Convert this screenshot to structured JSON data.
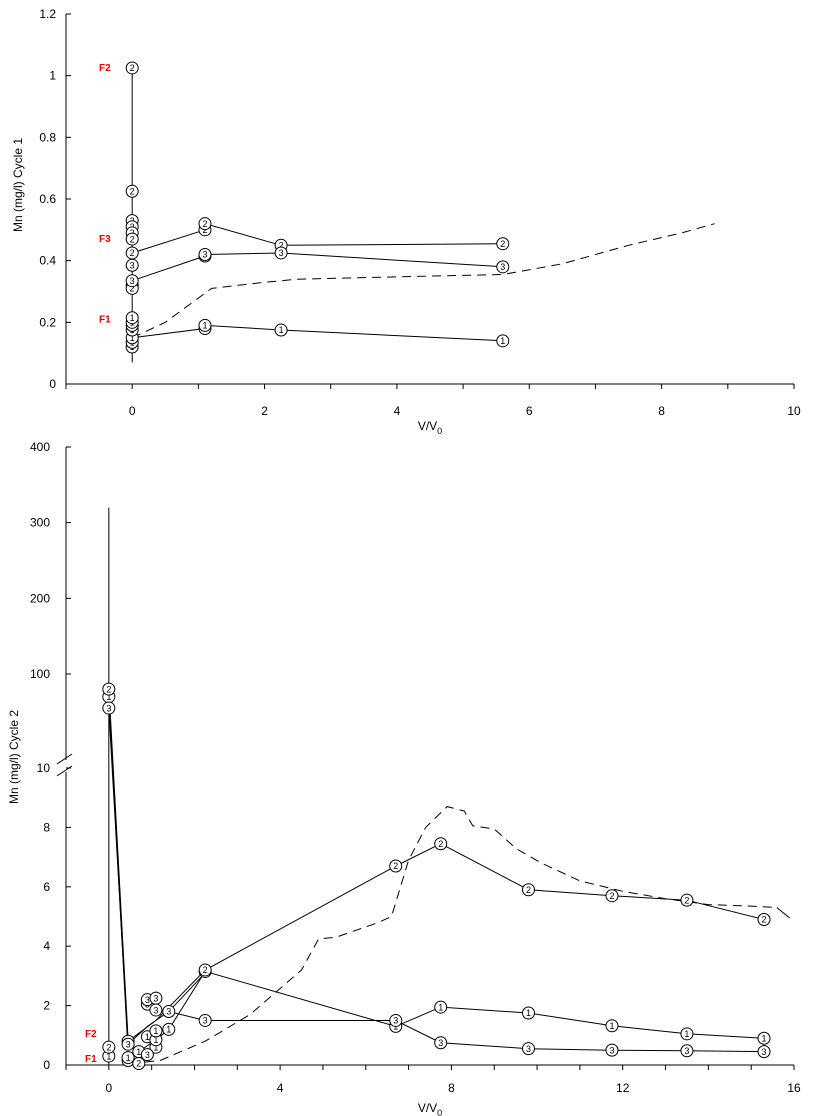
{
  "chart_data": [
    {
      "type": "line",
      "ylabel": "Mn (mg/l) Cycle 1",
      "xlabel": "V/V",
      "xlabel_subscript": "0",
      "xlim": [
        -1,
        10
      ],
      "ylim": [
        0,
        1.2
      ],
      "xticks": [
        "0",
        "2",
        "4",
        "6",
        "8",
        "10"
      ],
      "yticks": [
        "0",
        "0.2",
        "0.4",
        "0.6",
        "0.8",
        "1",
        "1.2"
      ],
      "grid": false,
      "fraction_labels": [
        {
          "text": "F2",
          "y": 1.025
        },
        {
          "text": "F3",
          "y": 0.47
        },
        {
          "text": "F1",
          "y": 0.21
        }
      ],
      "series": [
        {
          "marker": "1",
          "points": [
            [
              0,
              0.12
            ],
            [
              0,
              0.135
            ],
            [
              0,
              0.15
            ],
            [
              0,
              0.175
            ],
            [
              0,
              0.19
            ],
            [
              0,
              0.2
            ],
            [
              0,
              0.215
            ],
            [
              1.1,
              0.18
            ],
            [
              1.1,
              0.19
            ],
            [
              2.25,
              0.175
            ],
            [
              5.6,
              0.14
            ]
          ]
        },
        {
          "marker": "2",
          "points": [
            [
              0,
              1.025
            ],
            [
              0,
              0.625
            ],
            [
              0,
              0.53
            ],
            [
              0,
              0.51
            ],
            [
              0,
              0.49
            ],
            [
              0,
              0.47
            ],
            [
              0,
              0.425
            ],
            [
              0,
              0.32
            ],
            [
              0,
              0.31
            ],
            [
              1.1,
              0.5
            ],
            [
              1.1,
              0.52
            ],
            [
              2.25,
              0.45
            ],
            [
              5.6,
              0.455
            ]
          ]
        },
        {
          "marker": "3",
          "points": [
            [
              0,
              0.385
            ],
            [
              0,
              0.335
            ],
            [
              1.1,
              0.415
            ],
            [
              1.1,
              0.42
            ],
            [
              2.25,
              0.425
            ],
            [
              5.6,
              0.38
            ]
          ]
        }
      ],
      "dashed_line": [
        [
          0,
          0.15
        ],
        [
          0.5,
          0.2
        ],
        [
          1.2,
          0.31
        ],
        [
          2,
          0.33
        ],
        [
          2.5,
          0.34
        ],
        [
          3.5,
          0.345
        ],
        [
          4.5,
          0.35
        ],
        [
          5.6,
          0.355
        ],
        [
          6.5,
          0.39
        ],
        [
          7.5,
          0.45
        ],
        [
          8.3,
          0.49
        ],
        [
          8.8,
          0.52
        ]
      ]
    },
    {
      "type": "line",
      "ylabel": "Mn (mg/l) Cycle 2",
      "xlabel": "V/V",
      "xlabel_subscript": "0",
      "xlim": [
        -1,
        16
      ],
      "ylim": [
        0,
        400
      ],
      "axis_break": "10",
      "xticks": [
        "0",
        "4",
        "8",
        "12",
        "16"
      ],
      "yticks_lower": [
        "0",
        "2",
        "4",
        "6",
        "8",
        "10"
      ],
      "yticks_upper": [
        "100",
        "200",
        "300",
        "400"
      ],
      "grid": false,
      "fraction_labels": [
        {
          "text": "F2",
          "y": 1.05
        },
        {
          "text": "F1",
          "y": 0.2
        }
      ],
      "series": [
        {
          "marker": "1",
          "points": [
            [
              0,
              70
            ],
            [
              0,
              0.3
            ],
            [
              0.45,
              0.15
            ],
            [
              0.45,
              0.25
            ],
            [
              0.7,
              0.45
            ],
            [
              0.9,
              0.95
            ],
            [
              1.1,
              0.6
            ],
            [
              1.1,
              0.85
            ],
            [
              1.1,
              1.15
            ],
            [
              1.4,
              1.2
            ],
            [
              2.25,
              3.15
            ],
            [
              6.7,
              1.3
            ],
            [
              7.75,
              1.95
            ],
            [
              9.8,
              1.75
            ],
            [
              11.75,
              1.32
            ],
            [
              13.5,
              1.05
            ],
            [
              15.3,
              0.9
            ]
          ]
        },
        {
          "marker": "2",
          "points": [
            [
              0,
              80
            ],
            [
              0,
              0.6
            ],
            [
              0.45,
              0.8
            ],
            [
              0.7,
              0.05
            ],
            [
              2.25,
              3.2
            ],
            [
              6.7,
              6.7
            ],
            [
              7.75,
              7.45
            ],
            [
              9.8,
              5.9
            ],
            [
              11.75,
              5.7
            ],
            [
              13.5,
              5.55
            ],
            [
              15.3,
              4.9
            ]
          ]
        },
        {
          "marker": "3",
          "points": [
            [
              0,
              55
            ],
            [
              0.45,
              0.7
            ],
            [
              0.9,
              0.35
            ],
            [
              0.9,
              2.05
            ],
            [
              0.9,
              2.2
            ],
            [
              1.1,
              2.25
            ],
            [
              1.1,
              1.85
            ],
            [
              1.4,
              1.8
            ],
            [
              2.25,
              1.5
            ],
            [
              6.7,
              1.5
            ],
            [
              7.75,
              0.75
            ],
            [
              9.8,
              0.55
            ],
            [
              11.75,
              0.5
            ],
            [
              13.5,
              0.48
            ],
            [
              15.3,
              0.45
            ]
          ]
        }
      ],
      "dashed_line": [
        [
          0.5,
          0.05
        ],
        [
          1.2,
          0.15
        ],
        [
          2.25,
          0.8
        ],
        [
          3.3,
          1.7
        ],
        [
          4.5,
          3.2
        ],
        [
          4.9,
          4.25
        ],
        [
          5.3,
          4.3
        ],
        [
          6.3,
          4.8
        ],
        [
          6.6,
          5.0
        ],
        [
          7.0,
          6.9
        ],
        [
          7.4,
          8.0
        ],
        [
          7.9,
          8.7
        ],
        [
          8.3,
          8.55
        ],
        [
          8.5,
          8.05
        ],
        [
          9.0,
          7.95
        ],
        [
          9.5,
          7.3
        ],
        [
          10.1,
          6.8
        ],
        [
          11.0,
          6.2
        ],
        [
          12.0,
          5.85
        ],
        [
          13.0,
          5.6
        ],
        [
          14.0,
          5.4
        ],
        [
          15.0,
          5.35
        ],
        [
          15.6,
          5.3
        ]
      ]
    }
  ]
}
